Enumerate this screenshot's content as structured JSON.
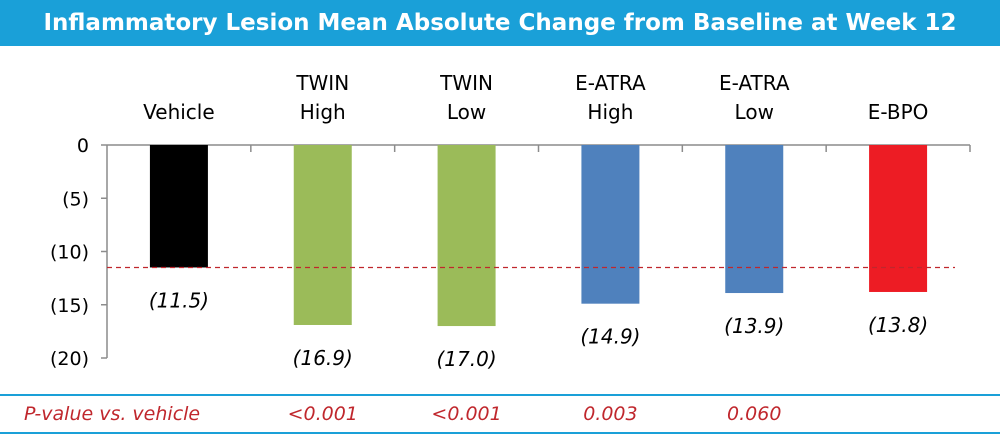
{
  "title": "Inflammatory Lesion Mean Absolute Change from Baseline at Week 12",
  "chart_data": {
    "type": "bar",
    "categories": [
      [
        "Vehicle"
      ],
      [
        "TWIN",
        "High"
      ],
      [
        "TWIN",
        "Low"
      ],
      [
        "E-ATRA",
        "High"
      ],
      [
        "E-ATRA",
        "Low"
      ],
      [
        "E-BPO"
      ]
    ],
    "values": [
      -11.5,
      -16.9,
      -17.0,
      -14.9,
      -13.9,
      -13.8
    ],
    "data_labels": [
      "(11.5)",
      "(16.9)",
      "(17.0)",
      "(14.9)",
      "(13.9)",
      "(13.8)"
    ],
    "colors": [
      "#000000",
      "#9bbb59",
      "#9bbb59",
      "#4f81bd",
      "#4f81bd",
      "#ed1c24"
    ],
    "ylim": [
      -20,
      0
    ],
    "yticks": [
      0,
      -5,
      -10,
      -15,
      -20
    ],
    "ytick_labels": [
      "0",
      "(5)",
      "(10)",
      "(15)",
      "(20)"
    ],
    "reference_line": {
      "value": -11.5,
      "color": "#c0272d",
      "style": "dashed"
    }
  },
  "pvalues": {
    "label": "P-value vs. vehicle",
    "values": [
      "",
      "<0.001",
      "<0.001",
      "0.003",
      "0.060",
      ""
    ]
  },
  "colors": {
    "header": "#1aa0d8",
    "pvalue_text": "#c0272d"
  }
}
